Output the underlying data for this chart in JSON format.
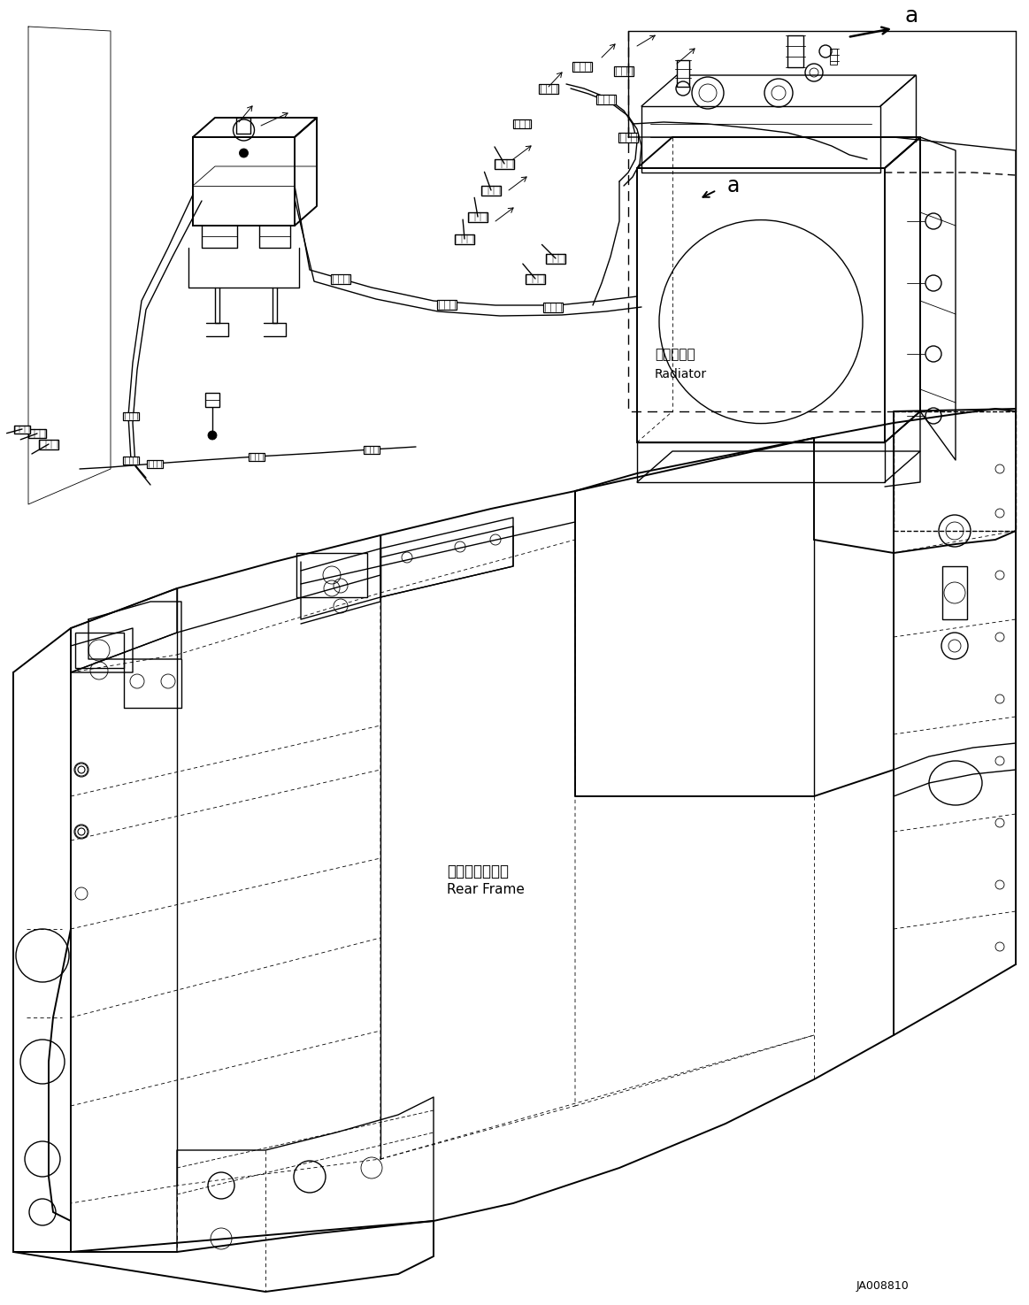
{
  "background_color": "#ffffff",
  "figsize": [
    11.63,
    14.75
  ],
  "dpi": 100,
  "labels": {
    "radiator_ja": "ラジエータ",
    "radiator_en": "Radiator",
    "rear_frame_ja": "リヤーフレーム",
    "rear_frame_en": "Rear Frame",
    "part_number": "JA008810",
    "arrow_a": "a"
  },
  "lw_thin": 0.6,
  "lw_med": 1.0,
  "lw_thick": 1.4
}
